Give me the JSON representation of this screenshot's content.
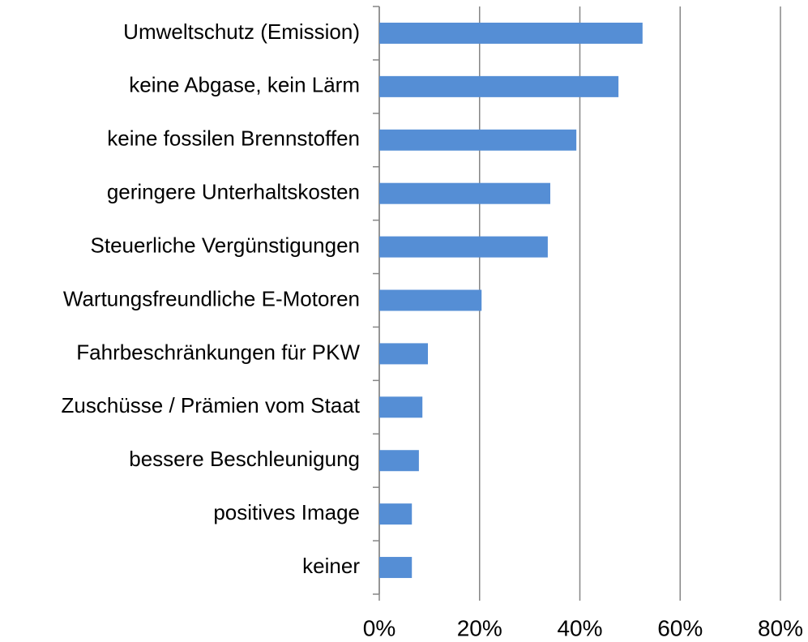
{
  "chart_data": {
    "type": "bar",
    "orientation": "horizontal",
    "categories": [
      "Umweltschutz (Emission)",
      "keine Abgase, kein Lärm",
      "keine fossilen Brennstoffen",
      "geringere Unterhaltskosten",
      "Steuerliche Vergünstigungen",
      "Wartungsfreundliche E-Motoren",
      "Fahrbeschränkungen für PKW",
      "Zuschüsse / Prämien vom Staat",
      "bessere Beschleunigung",
      "positives Image",
      "keiner"
    ],
    "values": [
      52.5,
      47.7,
      39.3,
      34.1,
      33.6,
      20.4,
      9.7,
      8.6,
      7.9,
      6.5,
      6.5
    ],
    "color": "#558ed5",
    "xlim": [
      0,
      80
    ],
    "xticks": [
      {
        "value": 0,
        "label": "0%"
      },
      {
        "value": 20,
        "label": "20%"
      },
      {
        "value": 40,
        "label": "40%"
      },
      {
        "value": 60,
        "label": "60%"
      },
      {
        "value": 80,
        "label": "80%"
      }
    ],
    "grid": true
  }
}
